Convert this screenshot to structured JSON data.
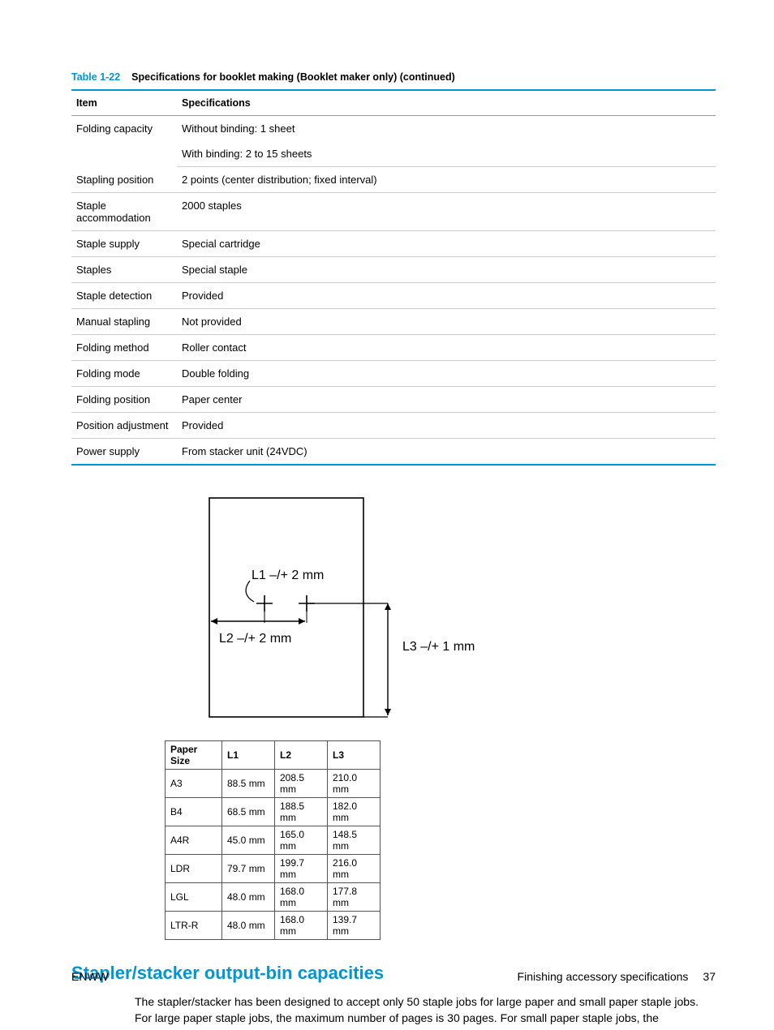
{
  "caption": {
    "number": "Table 1-22",
    "title": "Specifications for booklet making (Booklet maker only) (continued)"
  },
  "spec_table": {
    "headers": [
      "Item",
      "Specifications"
    ],
    "rows": [
      {
        "item": "Folding capacity",
        "spec": "Without binding: 1 sheet",
        "spec2": "With binding: 2 to 15 sheets"
      },
      {
        "item": "Stapling position",
        "spec": "2 points (center distribution; fixed interval)"
      },
      {
        "item": "Staple accommodation",
        "spec": "2000 staples"
      },
      {
        "item": "Staple supply",
        "spec": "Special cartridge"
      },
      {
        "item": "Staples",
        "spec": "Special staple"
      },
      {
        "item": "Staple detection",
        "spec": "Provided"
      },
      {
        "item": "Manual stapling",
        "spec": "Not provided"
      },
      {
        "item": "Folding method",
        "spec": "Roller contact"
      },
      {
        "item": "Folding mode",
        "spec": "Double folding"
      },
      {
        "item": "Folding position",
        "spec": "Paper center"
      },
      {
        "item": "Position adjustment",
        "spec": "Provided"
      },
      {
        "item": "Power supply",
        "spec": "From stacker unit (24VDC)"
      }
    ]
  },
  "diagram": {
    "l1_label": "L1 –/+ 2 mm",
    "l2_label": "L2 –/+ 2 mm",
    "l3_label": "L3 –/+ 1 mm"
  },
  "dim_table": {
    "headers": [
      "Paper Size",
      "L1",
      "L2",
      "L3"
    ],
    "rows": [
      [
        "A3",
        "88.5 mm",
        "208.5 mm",
        "210.0 mm"
      ],
      [
        "B4",
        "68.5 mm",
        "188.5 mm",
        "182.0 mm"
      ],
      [
        "A4R",
        "45.0 mm",
        "165.0 mm",
        "148.5 mm"
      ],
      [
        "LDR",
        "79.7 mm",
        "199.7 mm",
        "216.0 mm"
      ],
      [
        "LGL",
        "48.0 mm",
        "168.0 mm",
        "177.8 mm"
      ],
      [
        "LTR-R",
        "48.0 mm",
        "168.0 mm",
        "139.7 mm"
      ]
    ]
  },
  "section_heading": "Stapler/stacker output-bin capacities",
  "body_text": "The stapler/stacker has been designed to accept only 50 staple jobs for large paper and small paper staple jobs. For large paper staple jobs, the maximum number of pages is 30 pages. For small paper staple jobs, the",
  "footer": {
    "left": "ENWW",
    "right_label": "Finishing accessory specifications",
    "page": "37"
  }
}
